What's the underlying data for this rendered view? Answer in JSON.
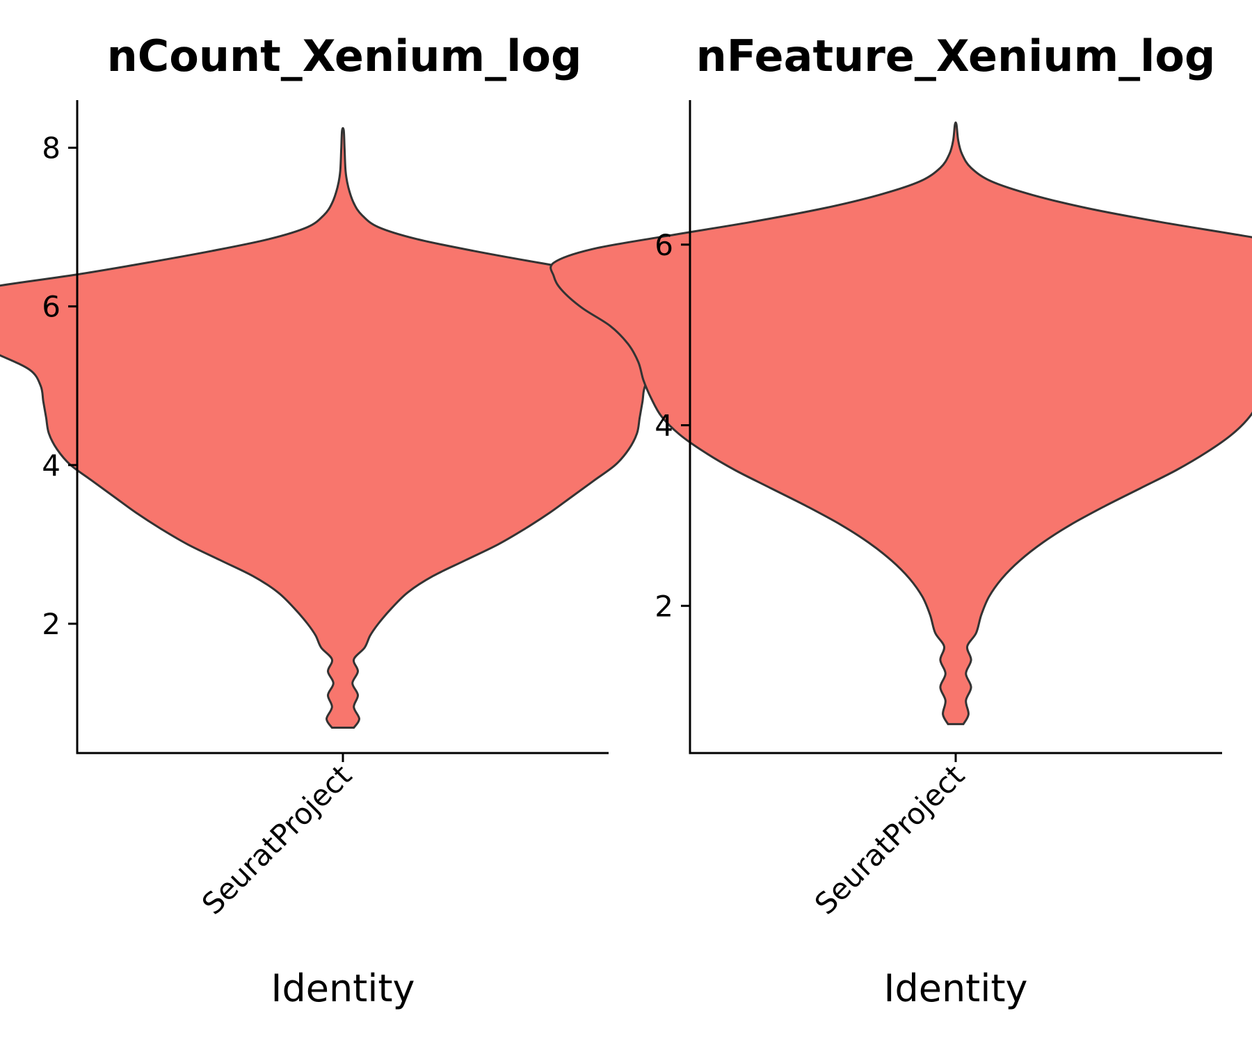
{
  "chart_data": [
    {
      "type": "violin",
      "title": "nCount_Xenium_log",
      "xlabel": "Identity",
      "ylabel": "",
      "categories": [
        "SeuratProject"
      ],
      "ylim": [
        0.37,
        8.6
      ],
      "yticks": [
        2,
        4,
        6,
        8
      ],
      "color": "#F8766D",
      "outline_color": "#333333",
      "distribution": {
        "min": 0.69,
        "max": 8.22,
        "profile": [
          [
            0.69,
            0.04
          ],
          [
            0.8,
            0.06
          ],
          [
            0.95,
            0.04
          ],
          [
            1.1,
            0.055
          ],
          [
            1.25,
            0.035
          ],
          [
            1.4,
            0.055
          ],
          [
            1.55,
            0.04
          ],
          [
            1.7,
            0.08
          ],
          [
            1.85,
            0.1
          ],
          [
            2.0,
            0.13
          ],
          [
            2.2,
            0.18
          ],
          [
            2.4,
            0.24
          ],
          [
            2.6,
            0.33
          ],
          [
            2.8,
            0.45
          ],
          [
            3.0,
            0.57
          ],
          [
            3.2,
            0.67
          ],
          [
            3.4,
            0.76
          ],
          [
            3.6,
            0.84
          ],
          [
            3.8,
            0.92
          ],
          [
            4.0,
            1.0
          ],
          [
            4.2,
            1.05
          ],
          [
            4.4,
            1.08
          ],
          [
            4.6,
            1.09
          ],
          [
            4.8,
            1.1
          ],
          [
            5.0,
            1.11
          ],
          [
            5.2,
            1.15
          ],
          [
            5.4,
            1.27
          ],
          [
            5.6,
            1.4
          ],
          [
            5.8,
            1.48
          ],
          [
            5.95,
            1.51
          ],
          [
            6.1,
            1.48
          ],
          [
            6.25,
            1.28
          ],
          [
            6.4,
            0.98
          ],
          [
            6.55,
            0.72
          ],
          [
            6.7,
            0.48
          ],
          [
            6.85,
            0.27
          ],
          [
            7.0,
            0.13
          ],
          [
            7.15,
            0.07
          ],
          [
            7.3,
            0.04
          ],
          [
            7.5,
            0.02
          ],
          [
            7.7,
            0.01
          ],
          [
            8.0,
            0.006
          ],
          [
            8.22,
            0.003
          ]
        ]
      }
    },
    {
      "type": "violin",
      "title": "nFeature_Xenium_log",
      "xlabel": "Identity",
      "ylabel": "",
      "categories": [
        "SeuratProject"
      ],
      "ylim": [
        0.37,
        7.6
      ],
      "yticks": [
        2,
        4,
        6
      ],
      "color": "#F8766D",
      "outline_color": "#333333",
      "distribution": {
        "min": 0.69,
        "max": 7.33,
        "profile": [
          [
            0.69,
            0.03
          ],
          [
            0.8,
            0.05
          ],
          [
            0.95,
            0.04
          ],
          [
            1.1,
            0.06
          ],
          [
            1.25,
            0.04
          ],
          [
            1.4,
            0.06
          ],
          [
            1.55,
            0.045
          ],
          [
            1.7,
            0.08
          ],
          [
            1.9,
            0.1
          ],
          [
            2.1,
            0.13
          ],
          [
            2.3,
            0.18
          ],
          [
            2.5,
            0.25
          ],
          [
            2.7,
            0.34
          ],
          [
            2.9,
            0.45
          ],
          [
            3.1,
            0.58
          ],
          [
            3.3,
            0.72
          ],
          [
            3.5,
            0.86
          ],
          [
            3.7,
            0.98
          ],
          [
            3.9,
            1.08
          ],
          [
            4.1,
            1.15
          ],
          [
            4.3,
            1.19
          ],
          [
            4.5,
            1.22
          ],
          [
            4.7,
            1.24
          ],
          [
            4.9,
            1.28
          ],
          [
            5.1,
            1.35
          ],
          [
            5.3,
            1.46
          ],
          [
            5.5,
            1.54
          ],
          [
            5.65,
            1.57
          ],
          [
            5.8,
            1.57
          ],
          [
            5.95,
            1.42
          ],
          [
            6.1,
            1.12
          ],
          [
            6.25,
            0.8
          ],
          [
            6.4,
            0.52
          ],
          [
            6.55,
            0.3
          ],
          [
            6.7,
            0.14
          ],
          [
            6.85,
            0.06
          ],
          [
            7.0,
            0.025
          ],
          [
            7.15,
            0.01
          ],
          [
            7.33,
            0.003
          ]
        ]
      }
    }
  ]
}
